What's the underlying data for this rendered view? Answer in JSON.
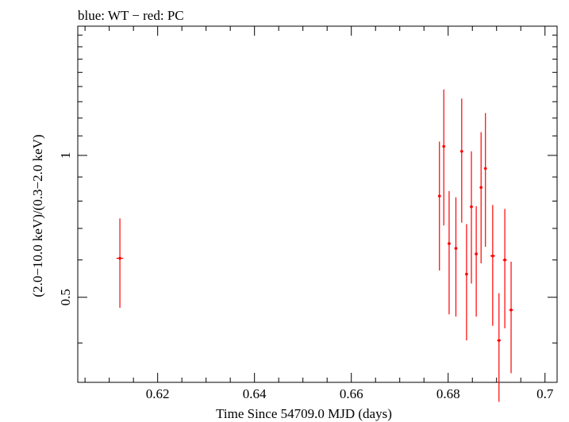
{
  "chart_data": {
    "type": "scatter",
    "title": "blue: WT − red: PC",
    "xlabel": "Time Since 54709.0 MJD (days)",
    "ylabel": "(2.0−10.0 keV)/(0.3−2.0 keV)",
    "y_scale": "log",
    "xlim": [
      0.6035,
      0.7025
    ],
    "ylim": [
      0.33,
      1.88
    ],
    "x_ticks": [
      {
        "value": 0.62,
        "label": "0.62"
      },
      {
        "value": 0.64,
        "label": "0.64"
      },
      {
        "value": 0.66,
        "label": "0.66"
      },
      {
        "value": 0.68,
        "label": "0.68"
      },
      {
        "value": 0.7,
        "label": "0.7"
      }
    ],
    "y_ticks": [
      {
        "value": 0.5,
        "label": "0.5"
      },
      {
        "value": 1.0,
        "label": "1"
      }
    ],
    "series": [
      {
        "name": "PC",
        "color": "#ff0000",
        "points": [
          {
            "x": 0.6122,
            "y": 0.605,
            "ylo": 0.475,
            "yhi": 0.735,
            "xerr": 0.0007
          },
          {
            "x": 0.6782,
            "y": 0.82,
            "ylo": 0.57,
            "yhi": 1.07,
            "xerr": 0.0003
          },
          {
            "x": 0.6791,
            "y": 1.045,
            "ylo": 0.71,
            "yhi": 1.38,
            "xerr": 0.0003
          },
          {
            "x": 0.6802,
            "y": 0.65,
            "ylo": 0.46,
            "yhi": 0.84,
            "xerr": 0.0003
          },
          {
            "x": 0.6816,
            "y": 0.635,
            "ylo": 0.455,
            "yhi": 0.815,
            "xerr": 0.0003
          },
          {
            "x": 0.6828,
            "y": 1.02,
            "ylo": 0.72,
            "yhi": 1.32,
            "xerr": 0.0003
          },
          {
            "x": 0.6838,
            "y": 0.56,
            "ylo": 0.405,
            "yhi": 0.715,
            "xerr": 0.0003
          },
          {
            "x": 0.6848,
            "y": 0.778,
            "ylo": 0.535,
            "yhi": 1.02,
            "xerr": 0.0003
          },
          {
            "x": 0.6858,
            "y": 0.618,
            "ylo": 0.455,
            "yhi": 0.78,
            "xerr": 0.0003
          },
          {
            "x": 0.6868,
            "y": 0.855,
            "ylo": 0.59,
            "yhi": 1.12,
            "xerr": 0.0003
          },
          {
            "x": 0.6877,
            "y": 0.938,
            "ylo": 0.64,
            "yhi": 1.23,
            "xerr": 0.0003
          },
          {
            "x": 0.6892,
            "y": 0.612,
            "ylo": 0.435,
            "yhi": 0.785,
            "xerr": 0.0005
          },
          {
            "x": 0.6905,
            "y": 0.405,
            "ylo": 0.3,
            "yhi": 0.51,
            "xerr": 0.0004
          },
          {
            "x": 0.6917,
            "y": 0.6,
            "ylo": 0.43,
            "yhi": 0.77,
            "xerr": 0.0004
          },
          {
            "x": 0.693,
            "y": 0.47,
            "ylo": 0.345,
            "yhi": 0.595,
            "xerr": 0.0004
          }
        ]
      }
    ]
  }
}
